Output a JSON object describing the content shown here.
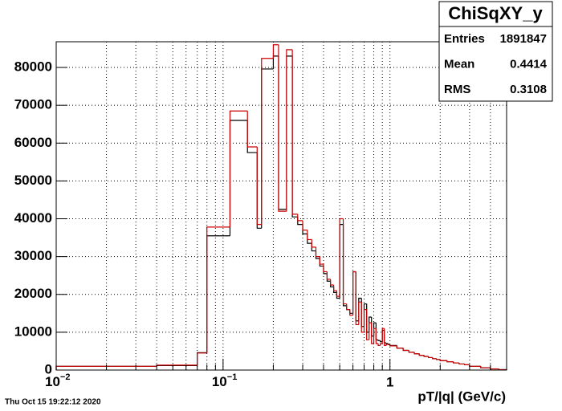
{
  "chart_data": {
    "type": "histogram",
    "stats": {
      "title": "ChiSqXY_y",
      "rows": [
        {
          "label": "Entries",
          "value": 1891847
        },
        {
          "label": "Mean",
          "value": 0.4414
        },
        {
          "label": "RMS",
          "value": 0.3108
        }
      ]
    },
    "x_label": "pT/|q| (GeV/c)",
    "timestamp": "Thu Oct 15 19:22:12 2020",
    "xlog": true,
    "grid": true,
    "xlim": [
      0.01,
      5
    ],
    "ylim": [
      0,
      86800
    ],
    "xticks": [
      {
        "value": 0.01,
        "label": "10",
        "sup": "−2"
      },
      {
        "value": 0.1,
        "label": "10",
        "sup": "−1"
      },
      1
    ],
    "xminorticks": [
      0.02,
      0.03,
      0.04,
      0.05,
      0.06,
      0.07,
      0.08,
      0.09,
      0.2,
      0.3,
      0.4,
      0.5,
      0.6,
      0.7,
      0.8,
      0.9,
      2,
      3,
      4,
      5
    ],
    "yticks": [
      0,
      10000,
      20000,
      30000,
      40000,
      50000,
      60000,
      70000,
      80000
    ],
    "bins": [
      0.01,
      0.04,
      0.07,
      0.08,
      0.11,
      0.14,
      0.16,
      0.17,
      0.2,
      0.215,
      0.24,
      0.26,
      0.28,
      0.3,
      0.32,
      0.34,
      0.36,
      0.38,
      0.4,
      0.42,
      0.44,
      0.46,
      0.48,
      0.5,
      0.525,
      0.55,
      0.575,
      0.6,
      0.625,
      0.65,
      0.675,
      0.7,
      0.725,
      0.75,
      0.775,
      0.8,
      0.825,
      0.85,
      0.875,
      0.9,
      0.925,
      0.95,
      0.975,
      1.0,
      1.1,
      1.2,
      1.3,
      1.4,
      1.5,
      1.6,
      1.7,
      1.8,
      1.9,
      2.0,
      2.2,
      2.4,
      2.6,
      2.8,
      3.0,
      3.5,
      4.0,
      4.5,
      5.0
    ],
    "series": [
      {
        "color": "#000000",
        "values": [
          1000,
          1200,
          4600,
          35500,
          66000,
          57500,
          37500,
          79600,
          83000,
          42500,
          83000,
          40500,
          38500,
          36000,
          33500,
          31500,
          29500,
          27500,
          25500,
          23500,
          22000,
          20500,
          19000,
          38500,
          17000,
          16000,
          15000,
          26000,
          13000,
          19000,
          11500,
          17500,
          10000,
          14000,
          9000,
          12500,
          8000,
          7800,
          7500,
          10500,
          7200,
          7000,
          6800,
          6500,
          5800,
          5200,
          4700,
          4300,
          3900,
          3600,
          3300,
          3000,
          2800,
          2500,
          2200,
          1900,
          1600,
          1400,
          1000,
          600,
          300,
          100
        ]
      },
      {
        "color": "#cc0000",
        "values": [
          1000,
          1300,
          4500,
          37800,
          68500,
          59000,
          38500,
          82400,
          86000,
          42000,
          84700,
          41200,
          39500,
          37000,
          34500,
          32500,
          30000,
          28000,
          26000,
          24000,
          22500,
          21000,
          19500,
          40000,
          17500,
          16000,
          14500,
          26000,
          12000,
          18000,
          10000,
          16000,
          8000,
          12500,
          7000,
          11000,
          7000,
          6500,
          7000,
          11000,
          6500,
          6800,
          6700,
          6400,
          5800,
          5200,
          4700,
          4300,
          3900,
          3600,
          3300,
          3000,
          2800,
          2500,
          2200,
          1900,
          1600,
          1400,
          1000,
          600,
          300,
          100
        ]
      }
    ]
  }
}
